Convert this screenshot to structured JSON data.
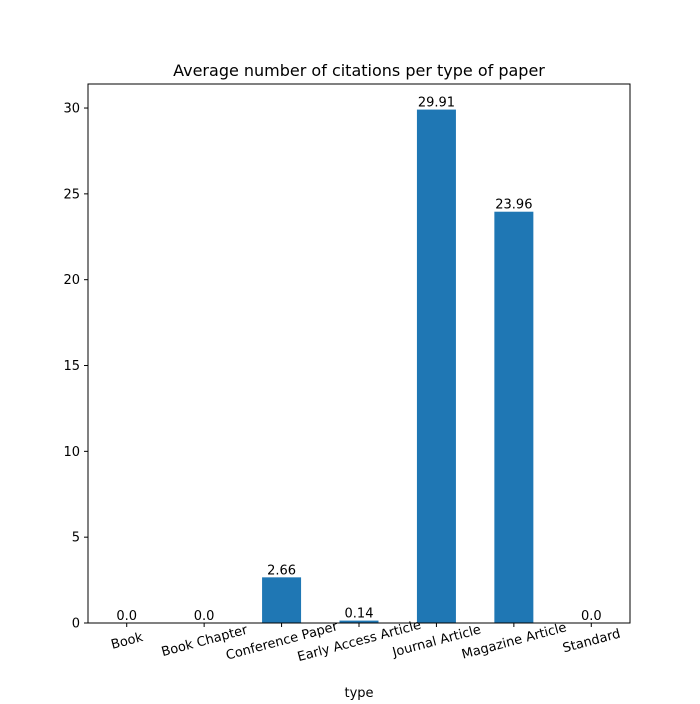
{
  "chart_data": {
    "type": "bar",
    "title": "Average number of citations per type of paper",
    "xlabel": "type",
    "ylabel": "",
    "categories": [
      "Book",
      "Book Chapter",
      "Conference Paper",
      "Early Access Article",
      "Journal Article",
      "Magazine Article",
      "Standard"
    ],
    "values": [
      0.0,
      0.0,
      2.66,
      0.14,
      29.91,
      23.96,
      0.0
    ],
    "value_labels": [
      "0.0",
      "0.0",
      "2.66",
      "0.14",
      "29.91",
      "23.96",
      "0.0"
    ],
    "ylim": [
      0,
      31.4
    ],
    "yticks": [
      0,
      5,
      10,
      15,
      20,
      25,
      30
    ],
    "grid": false,
    "colors": {
      "bar": "#1f77b4",
      "axis": "#000000"
    }
  }
}
